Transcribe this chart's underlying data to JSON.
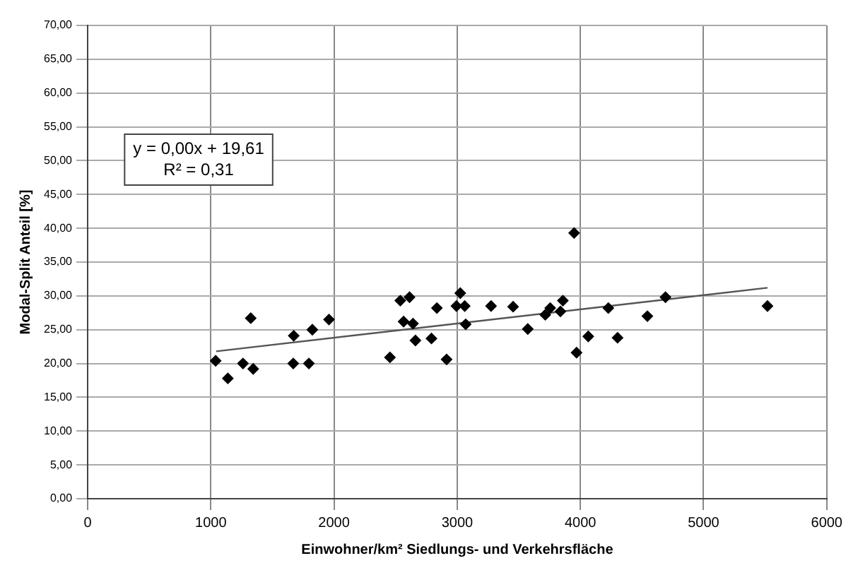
{
  "chart_data": {
    "type": "scatter",
    "xlabel": "Einwohner/km² Siedlungs- und Verkehrsfläche",
    "ylabel": "Modal-Split Anteil [%]",
    "annotations": [
      "y = 0,00x + 19,61",
      "R² = 0,31"
    ],
    "xlim": [
      0,
      6000
    ],
    "xticks": [
      0,
      1000,
      2000,
      3000,
      4000,
      5000,
      6000
    ],
    "ylim": [
      0,
      70
    ],
    "yticks": [
      {
        "value": 0,
        "label": "0,00"
      },
      {
        "value": 5,
        "label": "5,00"
      },
      {
        "value": 10,
        "label": "10,00"
      },
      {
        "value": 15,
        "label": "15,00"
      },
      {
        "value": 20,
        "label": "20,00"
      },
      {
        "value": 25,
        "label": "25,00"
      },
      {
        "value": 30,
        "label": "30,00"
      },
      {
        "value": 35,
        "label": "35,00"
      },
      {
        "value": 40,
        "label": "40,00"
      },
      {
        "value": 45,
        "label": "45,00"
      },
      {
        "value": 50,
        "label": "50,00"
      },
      {
        "value": 55,
        "label": "55,00"
      },
      {
        "value": 60,
        "label": "60,00"
      },
      {
        "value": 65,
        "label": "65,00"
      },
      {
        "value": 70,
        "label": "70,00"
      }
    ],
    "grid": true,
    "legend": false,
    "series": [
      {
        "type": "scatter",
        "marker": "diamond",
        "color": "#000000",
        "x": [
          1039,
          1138,
          1261,
          1324,
          1344,
          1673,
          1669,
          1796,
          1824,
          1959,
          2454,
          2538,
          2565,
          2613,
          2641,
          2661,
          2791,
          2835,
          2914,
          2994,
          3025,
          3061,
          3069,
          3275,
          3454,
          3573,
          3715,
          3755,
          3838,
          3858,
          3949,
          3969,
          4064,
          4227,
          4302,
          4544,
          4691,
          5519
        ],
        "values": [
          20.4,
          17.8,
          20.0,
          26.7,
          19.2,
          24.1,
          20.0,
          20.0,
          25.0,
          26.5,
          20.9,
          29.3,
          26.2,
          29.8,
          25.9,
          23.4,
          23.7,
          28.2,
          20.6,
          28.5,
          30.4,
          28.5,
          25.8,
          28.5,
          28.4,
          25.1,
          27.2,
          28.2,
          27.7,
          29.3,
          39.3,
          21.6,
          24.0,
          28.2,
          23.8,
          27.0,
          29.8,
          28.5
        ]
      },
      {
        "type": "line",
        "color": "#555555",
        "x": [
          1043,
          5519
        ],
        "values": [
          21.8,
          31.2
        ]
      }
    ]
  }
}
